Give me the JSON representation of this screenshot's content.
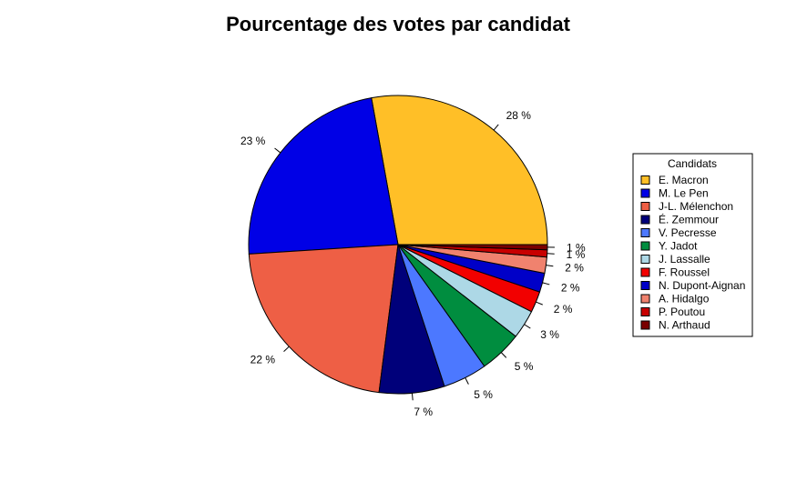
{
  "chart_data": {
    "type": "pie",
    "title": "Pourcentage des votes par candidat",
    "legend_title": "Candidats",
    "legend_position": "right",
    "slices": [
      {
        "name": "E. Macron",
        "value": 27.85,
        "label": "28 %",
        "color": "#FFBF27"
      },
      {
        "name": "M. Le Pen",
        "value": 23.15,
        "label": "23 %",
        "color": "#0000E6"
      },
      {
        "name": "J-L. Mélenchon",
        "value": 21.95,
        "label": "22 %",
        "color": "#EE5F45"
      },
      {
        "name": "É. Zemmour",
        "value": 7.07,
        "label": "7 %",
        "color": "#00007A"
      },
      {
        "name": "V. Pecresse",
        "value": 4.78,
        "label": "5 %",
        "color": "#4C78FF"
      },
      {
        "name": "Y. Jadot",
        "value": 4.63,
        "label": "5 %",
        "color": "#008D3F"
      },
      {
        "name": "J. Lassalle",
        "value": 3.13,
        "label": "3 %",
        "color": "#ADD8E6"
      },
      {
        "name": "F. Roussel",
        "value": 2.28,
        "label": "2 %",
        "color": "#F20000"
      },
      {
        "name": "N. Dupont-Aignan",
        "value": 2.06,
        "label": "2 %",
        "color": "#0000C8"
      },
      {
        "name": "A. Hidalgo",
        "value": 1.75,
        "label": "2 %",
        "color": "#F0826E"
      },
      {
        "name": "P. Poutou",
        "value": 0.77,
        "label": "1 %",
        "color": "#C80000"
      },
      {
        "name": "N. Arthaud",
        "value": 0.56,
        "label": "1 %",
        "color": "#7A0000"
      }
    ]
  }
}
